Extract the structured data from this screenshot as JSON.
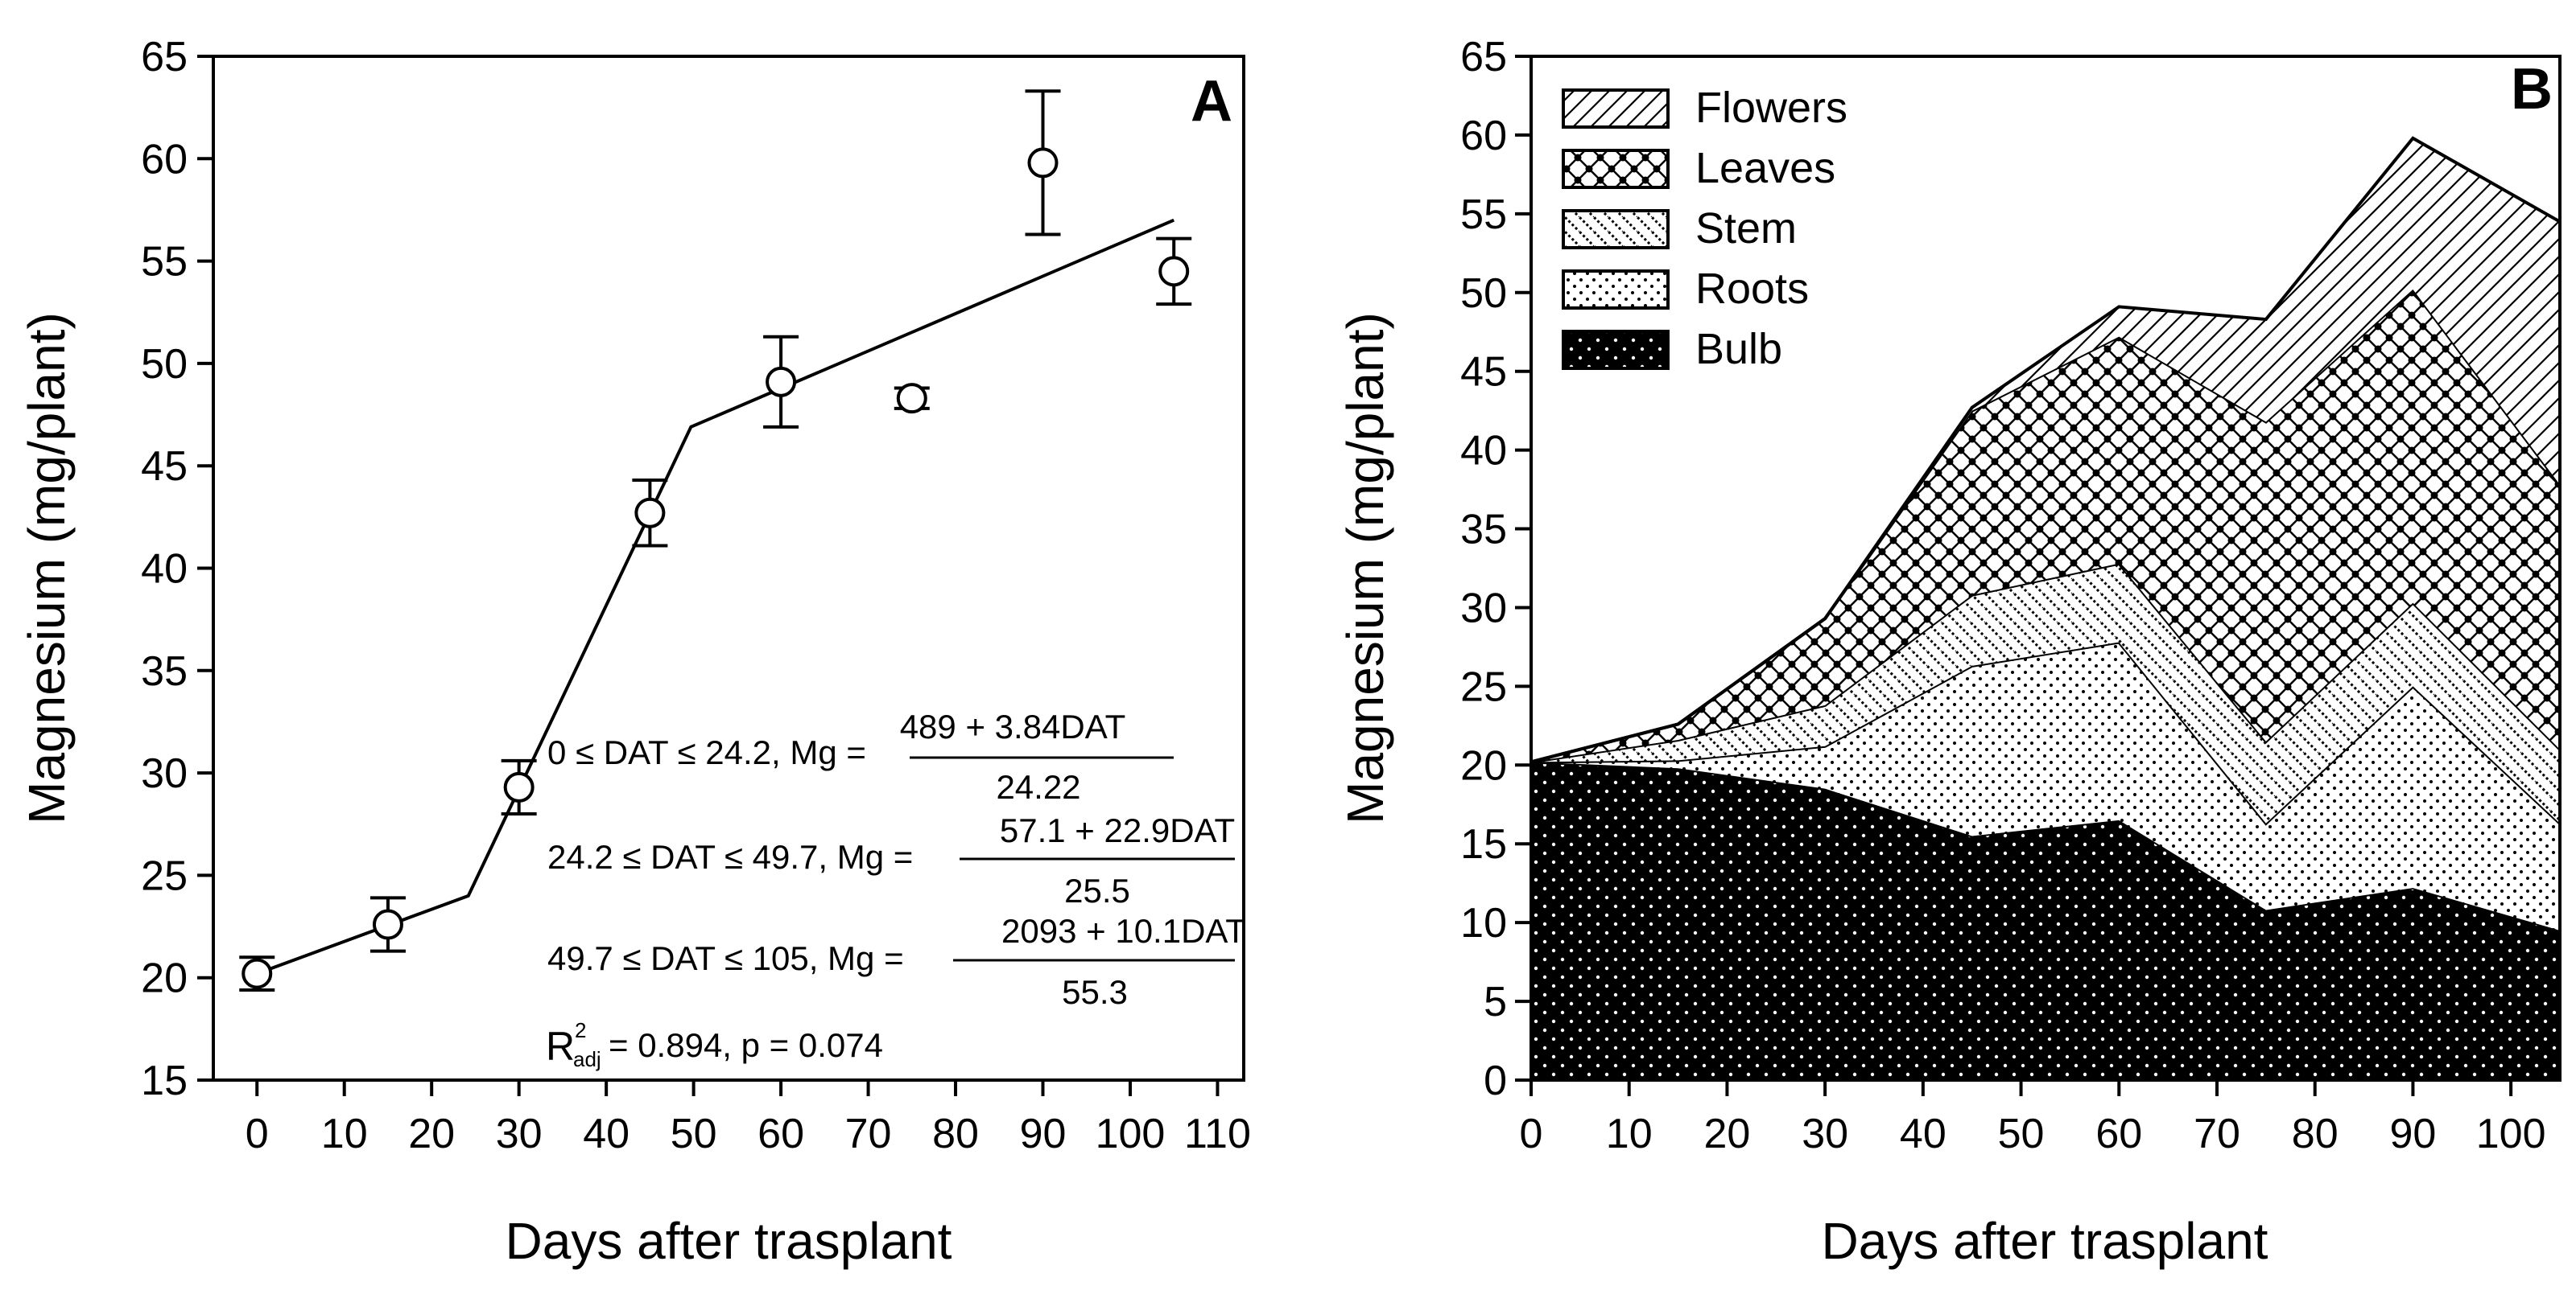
{
  "chart_data": [
    {
      "panel": "A",
      "type": "scatter",
      "xlabel": "Days after trasplant",
      "ylabel": "Magnesium (mg/plant)",
      "xlim": [
        -5,
        113
      ],
      "ylim": [
        15,
        65
      ],
      "xticks": [
        0,
        10,
        20,
        30,
        40,
        50,
        60,
        70,
        80,
        90,
        100,
        110
      ],
      "yticks": [
        15,
        20,
        25,
        30,
        35,
        40,
        45,
        50,
        55,
        60,
        65
      ],
      "points": [
        {
          "x": 0,
          "y": 20.2,
          "err": 0.8
        },
        {
          "x": 15,
          "y": 22.6,
          "err": 1.3
        },
        {
          "x": 30,
          "y": 29.3,
          "err": 1.3
        },
        {
          "x": 45,
          "y": 42.7,
          "err": 1.6
        },
        {
          "x": 60,
          "y": 49.1,
          "err": 2.2
        },
        {
          "x": 75,
          "y": 48.3,
          "err": 0.5
        },
        {
          "x": 90,
          "y": 59.8,
          "err": 3.5
        },
        {
          "x": 105,
          "y": 54.5,
          "err": 1.6
        }
      ],
      "fit_line": [
        {
          "x": 0,
          "y": 20.2
        },
        {
          "x": 24.2,
          "y": 24.0
        },
        {
          "x": 49.7,
          "y": 46.9
        },
        {
          "x": 105,
          "y": 57.0
        }
      ],
      "equations": [
        {
          "cond": "0 ≤ DAT ≤ 24.2, Mg =",
          "num": "489 + 3.84DAT",
          "den": "24.22"
        },
        {
          "cond": "24.2 ≤ DAT ≤ 49.7, Mg =",
          "num": "57.1 + 22.9DAT",
          "den": "25.5"
        },
        {
          "cond": "49.7 ≤ DAT ≤ 105, Mg =",
          "num": "2093 + 10.1DAT",
          "den": "55.3"
        }
      ],
      "r2": {
        "symbol": "R",
        "sup": "2",
        "sub": "adj",
        "text": " = 0.894, p = 0.074"
      }
    },
    {
      "panel": "B",
      "type": "area",
      "stacked": true,
      "xlabel": "Days after trasplant",
      "ylabel": "Magnesium (mg/plant)",
      "xlim": [
        0,
        105
      ],
      "ylim": [
        0,
        65
      ],
      "xticks": [
        0,
        10,
        20,
        30,
        40,
        50,
        60,
        70,
        80,
        90,
        100
      ],
      "yticks": [
        0,
        5,
        10,
        15,
        20,
        25,
        30,
        35,
        40,
        45,
        50,
        55,
        60,
        65
      ],
      "x": [
        0,
        15,
        30,
        45,
        60,
        75,
        90,
        105
      ],
      "series": [
        {
          "name": "Bulb",
          "cumulative": [
            20.2,
            19.8,
            18.5,
            15.5,
            16.5,
            10.8,
            12.2,
            9.5
          ]
        },
        {
          "name": "Roots",
          "cumulative": [
            20.2,
            20.3,
            21.2,
            26.3,
            27.8,
            16.3,
            25.0,
            16.3
          ]
        },
        {
          "name": "Stem",
          "cumulative": [
            20.2,
            21.6,
            23.8,
            30.8,
            32.8,
            21.5,
            30.3,
            21.0
          ]
        },
        {
          "name": "Leaves",
          "cumulative": [
            20.2,
            22.6,
            29.3,
            42.5,
            47.2,
            41.8,
            50.2,
            37.8
          ]
        },
        {
          "name": "Flowers",
          "cumulative": [
            20.2,
            22.6,
            29.3,
            42.7,
            49.1,
            48.3,
            59.8,
            54.5
          ]
        }
      ],
      "legend": [
        "Flowers",
        "Leaves",
        "Stem",
        "Roots",
        "Bulb"
      ],
      "legend_position": "top-left"
    }
  ]
}
